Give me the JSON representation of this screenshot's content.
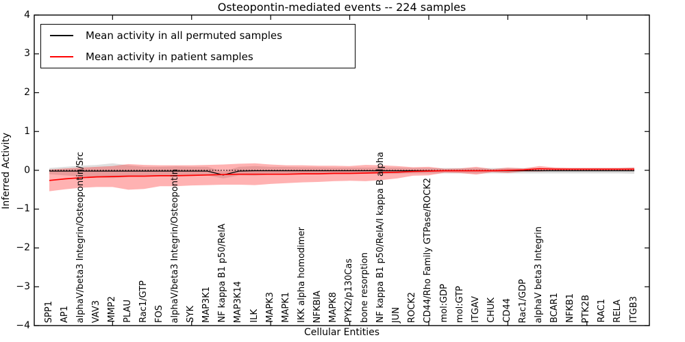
{
  "title": "Osteopontin-mediated events -- 224 samples",
  "legend": {
    "position": "upper left",
    "entries": [
      {
        "label": "Mean activity in all permuted samples",
        "color": "#000000"
      },
      {
        "label": "Mean activity in patient samples",
        "color": "#ff0000"
      }
    ]
  },
  "colors": {
    "permuted_line": "#000000",
    "patient_line": "#ff0000",
    "permuted_band": "rgba(0,0,0,0.13)",
    "patient_band": "rgba(255,0,0,0.30)",
    "frame": "#000000",
    "zero_line": "#000000"
  },
  "chart_data": {
    "type": "line",
    "title": "Osteopontin-mediated events -- 224 samples",
    "xlabel": "Cellular Entities",
    "ylabel": "Inferred Activity",
    "ylim": [
      -4,
      4
    ],
    "yticks": [
      4,
      3,
      2,
      1,
      0,
      -1,
      -2,
      -3,
      -4
    ],
    "grid": false,
    "legend_position": "upper left",
    "xtick_label_rotation": 90,
    "frame_tick_indices": [
      4,
      9,
      14,
      19,
      24,
      29,
      34
    ],
    "zero_line": {
      "y": 0,
      "style": "dotted",
      "color": "#000000"
    },
    "categories": [
      "SPP1",
      "AP1",
      "alphaV/beta3 Integrin/Osteopontin/Src",
      "VAV3",
      "MMP2",
      "PLAU",
      "Rac1/GTP",
      "FOS",
      "alphaV/beta3 Integrin/Osteopontin",
      "SYK",
      "MAP3K1",
      "NF kappa B1 p50/RelA",
      "MAP3K14",
      "ILK",
      "MAPK3",
      "MAPK1",
      "IKK alpha homodimer",
      "NFKBIA",
      "MAPK8",
      "PYK2/p130Cas",
      "bone resorption",
      "NF kappa B1 p50/RelA/I kappa B alpha",
      "JUN",
      "ROCK2",
      "CD44/Rho Family GTPase/ROCK2",
      "mol:GDP",
      "mol:GTP",
      "ITGAV",
      "CHUK",
      "CD44",
      "Rac1/GDP",
      "alphaV beta3 Integrin",
      "BCAR1",
      "NFKB1",
      "PTK2B",
      "RAC1",
      "RELA",
      "ITGB3"
    ],
    "series": [
      {
        "name": "Mean activity in all permuted samples",
        "color": "#000000",
        "values": [
          -0.02,
          -0.02,
          -0.02,
          -0.02,
          -0.02,
          -0.02,
          -0.02,
          -0.02,
          -0.02,
          -0.02,
          -0.02,
          -0.12,
          -0.02,
          -0.01,
          -0.01,
          -0.01,
          -0.01,
          -0.01,
          -0.01,
          -0.01,
          -0.01,
          -0.01,
          -0.01,
          -0.01,
          -0.01,
          -0.01,
          -0.01,
          -0.01,
          -0.01,
          -0.01,
          -0.01,
          -0.01,
          -0.01,
          -0.01,
          -0.01,
          -0.01,
          -0.01,
          -0.01
        ]
      },
      {
        "name": "Mean activity in patient samples",
        "color": "#ff0000",
        "values": [
          -0.26,
          -0.22,
          -0.19,
          -0.17,
          -0.16,
          -0.15,
          -0.15,
          -0.14,
          -0.14,
          -0.13,
          -0.12,
          -0.11,
          -0.1,
          -0.1,
          -0.1,
          -0.1,
          -0.09,
          -0.09,
          -0.08,
          -0.08,
          -0.07,
          -0.06,
          -0.05,
          -0.03,
          -0.02,
          -0.01,
          -0.01,
          -0.01,
          -0.01,
          0.0,
          0.01,
          0.04,
          0.03,
          0.03,
          0.03,
          0.03,
          0.03,
          0.03
        ]
      }
    ],
    "bands": [
      {
        "name": "permuted range",
        "color": "rgba(0,0,0,0.13)",
        "upper": [
          0.06,
          0.09,
          0.12,
          0.14,
          0.18,
          0.13,
          0.09,
          0.09,
          0.1,
          0.09,
          0.09,
          -0.03,
          0.09,
          0.11,
          0.09,
          0.09,
          0.08,
          0.08,
          0.07,
          0.07,
          0.07,
          0.07,
          0.07,
          0.06,
          0.06,
          0.06,
          0.06,
          0.06,
          0.06,
          0.06,
          0.06,
          0.06,
          0.06,
          0.06,
          0.06,
          0.06,
          0.06,
          0.07
        ],
        "lower": [
          -0.1,
          -0.13,
          -0.16,
          -0.18,
          -0.2,
          -0.17,
          -0.13,
          -0.13,
          -0.14,
          -0.13,
          -0.13,
          -0.21,
          -0.13,
          -0.14,
          -0.11,
          -0.11,
          -0.1,
          -0.1,
          -0.09,
          -0.09,
          -0.09,
          -0.09,
          -0.09,
          -0.08,
          -0.08,
          -0.08,
          -0.08,
          -0.08,
          -0.08,
          -0.08,
          -0.08,
          -0.08,
          -0.08,
          -0.08,
          -0.08,
          -0.08,
          -0.08,
          -0.09
        ]
      },
      {
        "name": "patient range",
        "color": "rgba(255,0,0,0.30)",
        "upper": [
          0.02,
          0.05,
          0.07,
          0.09,
          0.11,
          0.16,
          0.14,
          0.13,
          0.13,
          0.13,
          0.14,
          0.15,
          0.17,
          0.18,
          0.15,
          0.13,
          0.13,
          0.12,
          0.12,
          0.11,
          0.14,
          0.13,
          0.11,
          0.08,
          0.09,
          0.04,
          0.05,
          0.09,
          0.03,
          0.07,
          0.05,
          0.11,
          0.07,
          0.06,
          0.06,
          0.06,
          0.06,
          0.07
        ],
        "lower": [
          -0.54,
          -0.49,
          -0.45,
          -0.43,
          -0.43,
          -0.5,
          -0.48,
          -0.41,
          -0.41,
          -0.39,
          -0.38,
          -0.37,
          -0.37,
          -0.38,
          -0.35,
          -0.33,
          -0.31,
          -0.3,
          -0.28,
          -0.27,
          -0.28,
          -0.25,
          -0.21,
          -0.14,
          -0.13,
          -0.06,
          -0.07,
          -0.11,
          -0.05,
          -0.07,
          -0.03,
          -0.03,
          -0.01,
          0.0,
          0.0,
          0.0,
          0.0,
          -0.01
        ]
      }
    ]
  }
}
